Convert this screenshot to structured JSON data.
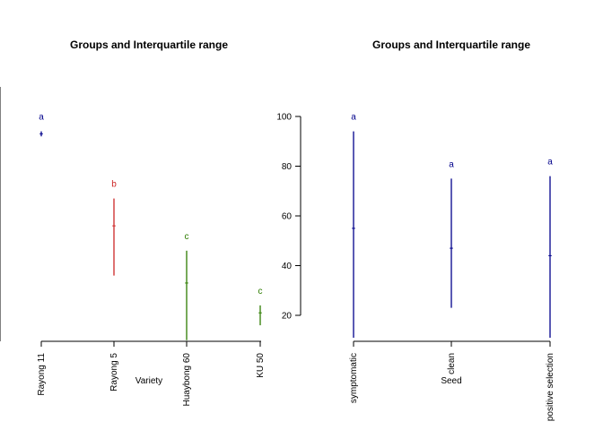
{
  "chart_data": [
    {
      "type": "range",
      "title": "Groups and Interquartile range",
      "xlabel": "Variety",
      "ylabel": "",
      "ylim": [
        10,
        100
      ],
      "y_axis_drawn": false,
      "categories": [
        "Rayong 11",
        "Rayong 5",
        "Huaybong 60",
        "KU 50"
      ],
      "series": [
        {
          "median": [
            93,
            56,
            33,
            21
          ],
          "q1": [
            92,
            36,
            10,
            16
          ],
          "q3": [
            94,
            67,
            46,
            24
          ],
          "groups": [
            "a",
            "b",
            "c",
            "c"
          ],
          "colors": [
            "#00008B",
            "#CD2626",
            "#2E7D00",
            "#2E7D00"
          ]
        }
      ]
    },
    {
      "type": "range",
      "title": "Groups and Interquartile range",
      "xlabel": "Seed",
      "ylabel": "",
      "ylim": [
        10,
        100
      ],
      "y_axis_drawn": true,
      "y_ticks": [
        20,
        40,
        60,
        80,
        100
      ],
      "categories": [
        "symptomatic",
        "clean",
        "positive selection"
      ],
      "series": [
        {
          "median": [
            55,
            47,
            44
          ],
          "q1": [
            11,
            23,
            11
          ],
          "q3": [
            94,
            75,
            76
          ],
          "groups": [
            "a",
            "a",
            "a"
          ],
          "colors": [
            "#00008B",
            "#00008B",
            "#00008B"
          ]
        }
      ]
    }
  ]
}
